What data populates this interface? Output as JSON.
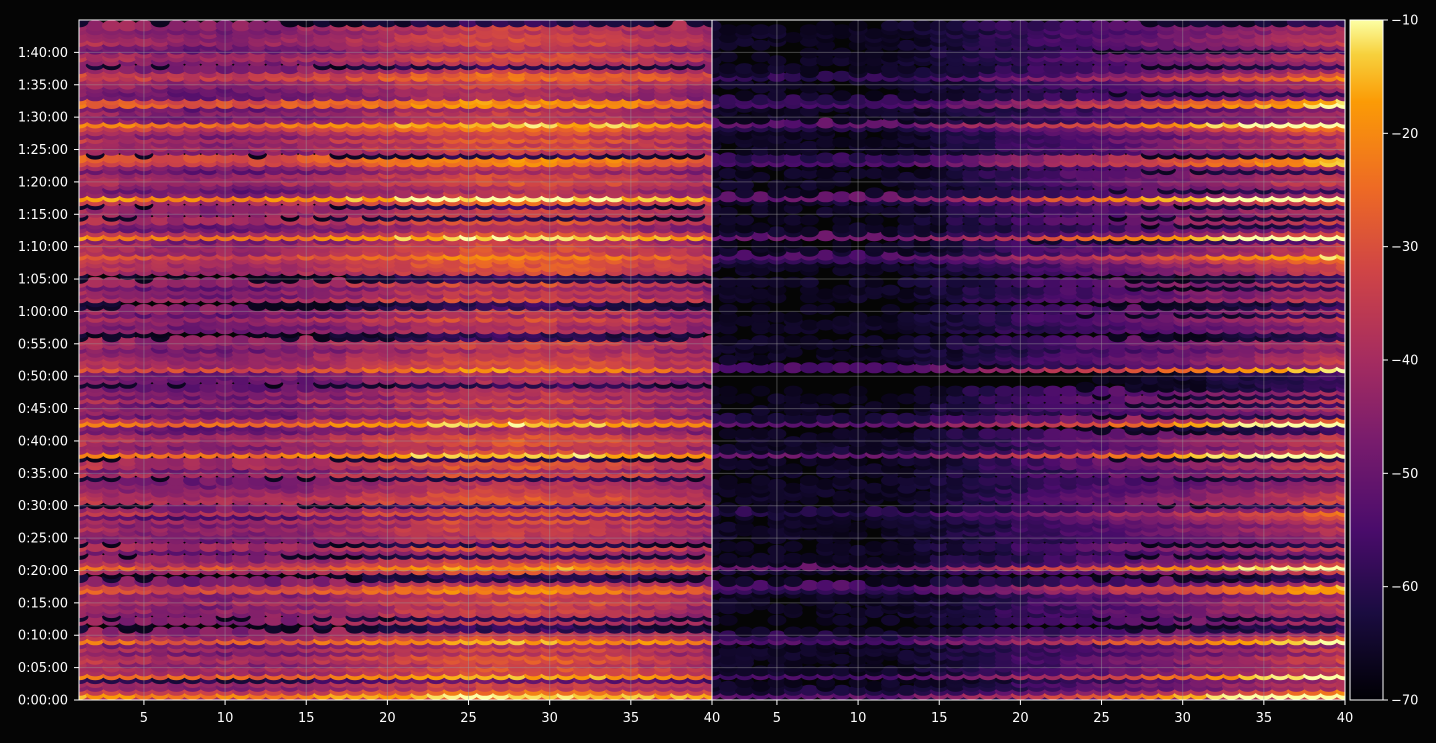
{
  "chart_data": {
    "type": "heatmap",
    "title": "",
    "xlabel": "",
    "ylabel": "",
    "panels": [
      {
        "name": "",
        "x_range": [
          1,
          40
        ],
        "x_ticks": [
          5,
          10,
          15,
          20,
          25,
          30,
          35,
          40
        ]
      },
      {
        "name": "",
        "x_range": [
          1,
          40
        ],
        "x_ticks": [
          5,
          10,
          15,
          20,
          25,
          30,
          35,
          40
        ]
      }
    ],
    "y_axis": {
      "unit": "time",
      "range_seconds": [
        0,
        6300
      ],
      "tick_seconds": [
        0,
        300,
        600,
        900,
        1200,
        1500,
        1800,
        2100,
        2400,
        2700,
        3000,
        3300,
        3600,
        3900,
        4200,
        4500,
        4800,
        5100,
        5400,
        5700,
        6000
      ],
      "tick_labels": [
        "0:00:00",
        "0:05:00",
        "0:10:00",
        "0:15:00",
        "0:20:00",
        "0:25:00",
        "0:30:00",
        "0:35:00",
        "0:40:00",
        "0:45:00",
        "0:50:00",
        "0:55:00",
        "1:00:00",
        "1:05:00",
        "1:10:00",
        "1:15:00",
        "1:20:00",
        "1:25:00",
        "1:30:00",
        "1:35:00",
        "1:40:00"
      ]
    },
    "colorbar": {
      "colormap": "inferno",
      "range": [
        -70,
        -10
      ],
      "ticks": [
        -70,
        -60,
        -50,
        -40,
        -30,
        -20,
        -10
      ],
      "tick_labels": [
        "−70",
        "−60",
        "−50",
        "−40",
        "−30",
        "−20",
        "−10"
      ]
    },
    "strong_rows_seconds": [
      60,
      220,
      570,
      1050,
      1240,
      1720,
      2290,
      2580,
      3090,
      4110,
      4300,
      4660,
      5000,
      5340,
      5540,
      5800
    ],
    "grid": true,
    "colors": {
      "background": "#050505",
      "grid": "#9a9a9a",
      "text": "#ffffff",
      "axis": "#ffffff"
    }
  }
}
